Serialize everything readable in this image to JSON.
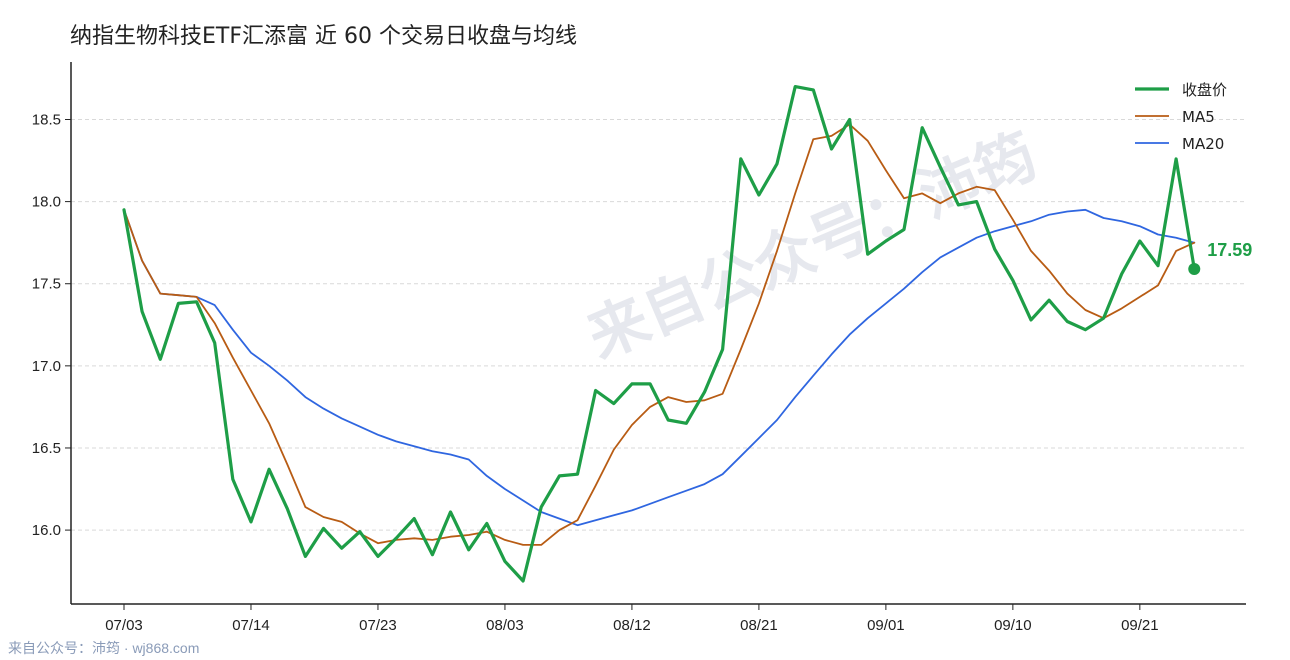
{
  "title": "纳指生物科技ETF汇添富 近 60 个交易日收盘与均线",
  "watermark": "来自公众号：沛筠",
  "source_note": "来自公众号：沛筠 · wj868.com",
  "colors": {
    "close": "#1e9e47",
    "ma5": "#b85c14",
    "ma20": "#2f66e0",
    "grid": "#d9d9d9",
    "axis": "#222222",
    "watermark": "#e6e8ee"
  },
  "chart_data": {
    "type": "line",
    "title": "纳指生物科技ETF汇添富 近 60 个交易日收盘与均线",
    "xlabel": "",
    "ylabel": "",
    "ylim": [
      15.55,
      18.85
    ],
    "yticks": [
      "16.0",
      "16.5",
      "17.0",
      "17.5",
      "18.0",
      "18.5"
    ],
    "grid": "horizontal dashed",
    "legend_position": "top-right",
    "x_ticks": [
      {
        "index": 0,
        "label": "07/03"
      },
      {
        "index": 7,
        "label": "07/14"
      },
      {
        "index": 14,
        "label": "07/23"
      },
      {
        "index": 21,
        "label": "08/03"
      },
      {
        "index": 28,
        "label": "08/12"
      },
      {
        "index": 35,
        "label": "08/21"
      },
      {
        "index": 42,
        "label": "09/01"
      },
      {
        "index": 49,
        "label": "09/10"
      },
      {
        "index": 56,
        "label": "09/21"
      }
    ],
    "series": [
      {
        "name": "收盘价",
        "values": [
          17.95,
          17.33,
          17.04,
          17.38,
          17.39,
          17.14,
          16.31,
          16.05,
          16.37,
          16.13,
          15.84,
          16.01,
          15.89,
          15.99,
          15.84,
          15.95,
          16.07,
          15.85,
          16.11,
          15.88,
          16.04,
          15.81,
          15.69,
          16.14,
          16.33,
          16.34,
          16.85,
          16.77,
          16.89,
          16.89,
          16.67,
          16.65,
          16.84,
          17.1,
          18.26,
          18.04,
          18.23,
          18.7,
          18.68,
          18.32,
          18.5,
          17.68,
          17.76,
          17.83,
          18.45,
          18.21,
          17.98,
          18.0,
          17.71,
          17.52,
          17.28,
          17.4,
          17.27,
          17.22,
          17.29,
          17.56,
          17.76,
          17.61,
          18.26,
          17.59
        ]
      },
      {
        "name": "MA5",
        "values": [
          17.95,
          17.64,
          17.44,
          17.43,
          17.42,
          17.26,
          17.05,
          16.85,
          16.65,
          16.4,
          16.14,
          16.08,
          16.05,
          15.98,
          15.92,
          15.94,
          15.95,
          15.94,
          15.96,
          15.97,
          15.99,
          15.94,
          15.91,
          15.91,
          16.0,
          16.06,
          16.27,
          16.49,
          16.64,
          16.75,
          16.81,
          16.78,
          16.79,
          16.83,
          17.1,
          17.38,
          17.7,
          18.05,
          18.38,
          18.4,
          18.47,
          18.37,
          18.19,
          18.02,
          18.05,
          17.99,
          18.05,
          18.09,
          18.07,
          17.89,
          17.7,
          17.58,
          17.44,
          17.34,
          17.29,
          17.35,
          17.42,
          17.49,
          17.7,
          17.75
        ]
      },
      {
        "name": "MA20",
        "values": [
          17.95,
          17.64,
          17.44,
          17.43,
          17.42,
          17.37,
          17.22,
          17.08,
          17.0,
          16.91,
          16.81,
          16.74,
          16.68,
          16.63,
          16.58,
          16.54,
          16.51,
          16.48,
          16.46,
          16.43,
          16.33,
          16.25,
          16.18,
          16.11,
          16.07,
          16.03,
          16.06,
          16.09,
          16.12,
          16.16,
          16.2,
          16.24,
          16.28,
          16.34,
          16.45,
          16.56,
          16.67,
          16.81,
          16.94,
          17.07,
          17.19,
          17.29,
          17.38,
          17.47,
          17.57,
          17.66,
          17.72,
          17.78,
          17.82,
          17.85,
          17.88,
          17.92,
          17.94,
          17.95,
          17.9,
          17.88,
          17.85,
          17.8,
          17.78,
          17.75
        ]
      }
    ],
    "last_value_label": "17.59"
  }
}
